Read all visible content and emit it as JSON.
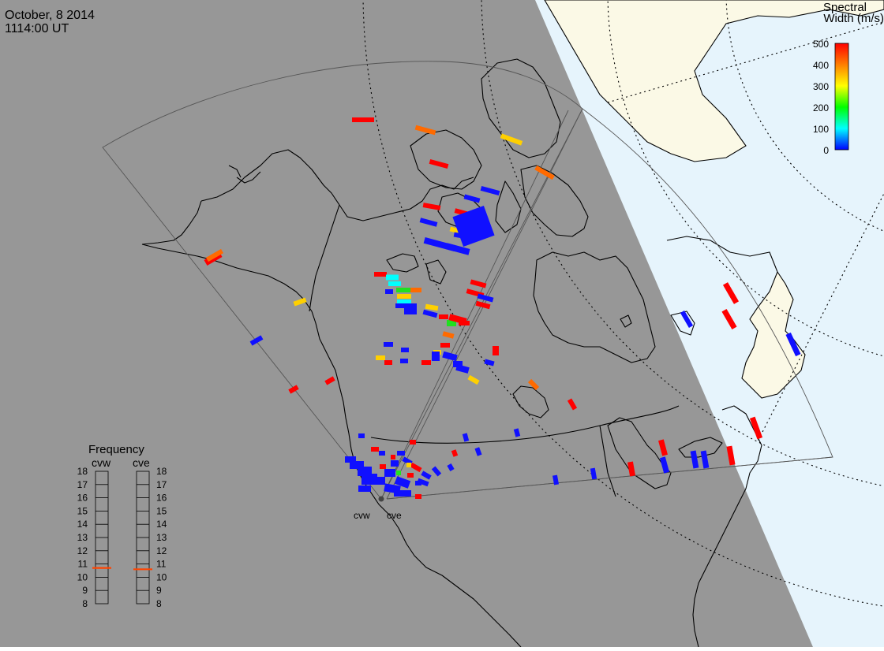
{
  "header": {
    "date": "October, 8 2014",
    "time": "1114:00 UT"
  },
  "colorbar": {
    "title_line1": "Spectral",
    "title_line2": "Width (m/s)",
    "ticks": [
      "500",
      "400",
      "300",
      "200",
      "100",
      "0"
    ],
    "stops": [
      "#ff0000",
      "#ff7f00",
      "#ffff00",
      "#00ff00",
      "#00ffff",
      "#0000ff"
    ]
  },
  "frequency": {
    "title": "Frequency",
    "left_label": "cvw",
    "right_label": "cve",
    "levels": [
      "18",
      "17",
      "16",
      "15",
      "14",
      "13",
      "12",
      "11",
      "10",
      "9",
      "8"
    ],
    "left_marker": "10.7",
    "right_marker": "10.6",
    "marker_color": "#ff4400"
  },
  "radars": {
    "west": "cvw",
    "east": "cve"
  },
  "colors": {
    "night": "#979797",
    "day_land": "#fbf9e6",
    "day_ocean": "#e6f4fc",
    "red": "#ff0000",
    "orange": "#ff6a00",
    "yellow": "#ffd000",
    "green": "#20e020",
    "cyan": "#00ffff",
    "blue": "#1010ff"
  }
}
